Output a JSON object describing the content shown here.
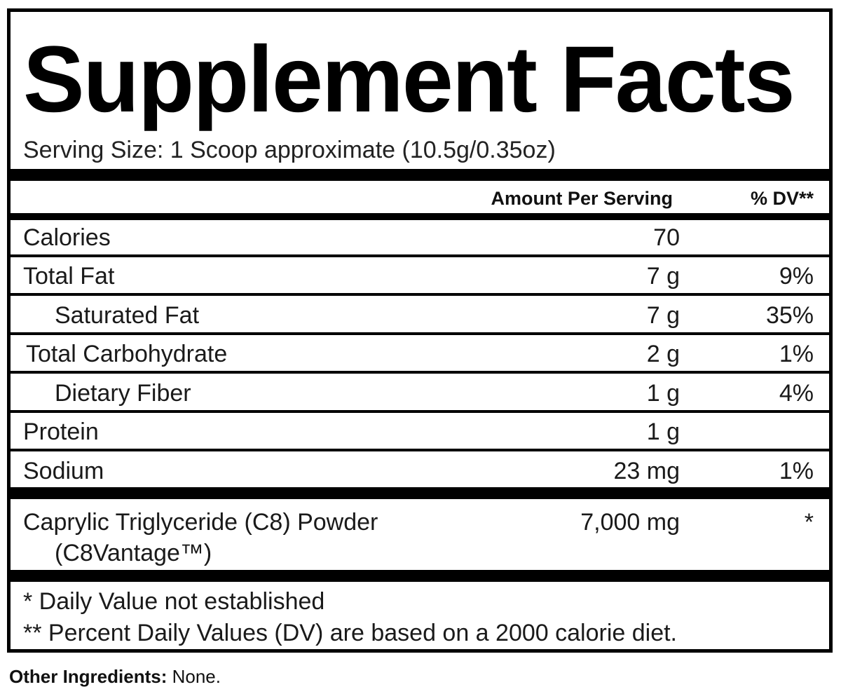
{
  "title": "Supplement Facts",
  "serving_size": "Serving Size: 1 Scoop approximate (10.5g/0.35oz)",
  "header": {
    "amount_label": "Amount Per Serving",
    "dv_label": "% DV**"
  },
  "rows": [
    {
      "name": "Calories",
      "amount": "70",
      "dv": ""
    },
    {
      "name": "Total Fat",
      "amount": "7 g",
      "dv": "9%"
    },
    {
      "name": "Saturated Fat",
      "amount": "7 g",
      "dv": "35%"
    },
    {
      "name": "Total Carbohydrate",
      "amount": "2 g",
      "dv": "1%"
    },
    {
      "name": "Dietary Fiber",
      "amount": "1 g",
      "dv": "4%"
    },
    {
      "name": "Protein",
      "amount": "1 g",
      "dv": ""
    },
    {
      "name": "Sodium",
      "amount": "23 mg",
      "dv": "1%"
    }
  ],
  "ingredient": {
    "name_line1": "Caprylic Triglyceride (C8) Powder",
    "name_line2": "(C8Vantage™)",
    "amount": "7,000 mg",
    "dv": "*"
  },
  "footnotes": [
    "* Daily Value not established",
    "** Percent Daily Values (DV) are based on a 2000 calorie diet."
  ],
  "other_ingredients": {
    "label": "Other Ingredients:",
    "value": "None."
  }
}
